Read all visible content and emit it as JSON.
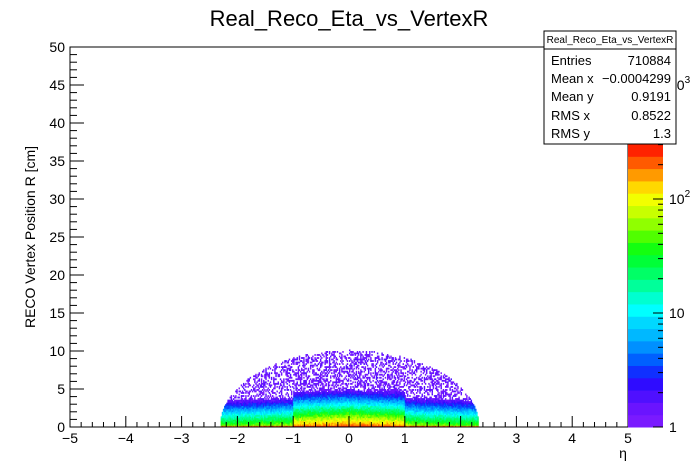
{
  "chart_data": {
    "type": "heatmap",
    "title": "Real_Reco_Eta_vs_VertexR",
    "xlabel": "η",
    "ylabel": "RECO Vertex Position R [cm]",
    "xlim": [
      -5,
      5
    ],
    "ylim": [
      0,
      50
    ],
    "x_ticks": [
      "−5",
      "−4",
      "−3",
      "−2",
      "−1",
      "0",
      "1",
      "2",
      "3",
      "4",
      "5"
    ],
    "y_ticks": [
      "0",
      "5",
      "10",
      "15",
      "20",
      "25",
      "30",
      "35",
      "40",
      "45",
      "50"
    ],
    "x_tick_values": [
      -5,
      -4,
      -3,
      -2,
      -1,
      0,
      1,
      2,
      3,
      4,
      5
    ],
    "y_tick_values": [
      0,
      5,
      10,
      15,
      20,
      25,
      30,
      35,
      40,
      45,
      50
    ],
    "colorbar": {
      "scale": "log",
      "range": [
        1,
        1000
      ],
      "ticks": [
        {
          "label": "1",
          "value": 1
        },
        {
          "label": "10",
          "value": 10
        },
        {
          "label": "10",
          "exp": "2",
          "value": 100
        },
        {
          "label": "10",
          "exp": "3",
          "value": 1000
        }
      ],
      "colors": [
        "#7a1aff",
        "#6a14ff",
        "#4f10ff",
        "#2f0cff",
        "#1030ff",
        "#0060ff",
        "#0090ff",
        "#00b8ff",
        "#00d8ff",
        "#00ffff",
        "#00ffd0",
        "#00ff9a",
        "#00ff66",
        "#00ff38",
        "#14ff10",
        "#50ff00",
        "#90ff00",
        "#c8ff00",
        "#f2ff00",
        "#ffd800",
        "#ff9a00",
        "#ff5a00",
        "#ff2200"
      ]
    },
    "distribution": {
      "description_regions": [
        {
          "eta_range": [
            -2.3,
            2.3
          ],
          "r_range": [
            0,
            10
          ],
          "shape": "semi-ellipse"
        },
        {
          "eta_range": [
            -1.0,
            1.0
          ],
          "r_range": [
            0,
            4
          ],
          "peak": true
        }
      ]
    }
  },
  "stats": {
    "title": "Real_Reco_Eta_vs_VertexR",
    "rows": [
      {
        "label": "Entries",
        "value": "710884"
      },
      {
        "label": "Mean x",
        "value": "−0.0004299"
      },
      {
        "label": "Mean y",
        "value": "0.9191"
      },
      {
        "label": "RMS x",
        "value": "0.8522"
      },
      {
        "label": "RMS y",
        "value": "1.3"
      }
    ]
  }
}
